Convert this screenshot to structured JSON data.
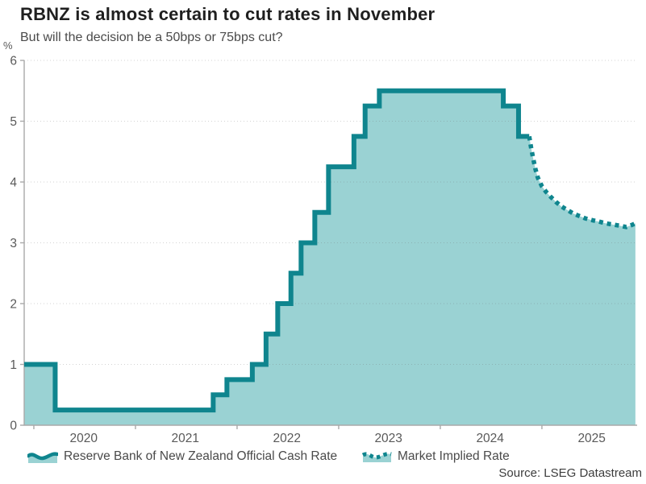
{
  "chart_data": {
    "type": "line",
    "title": "RBNZ is almost certain to cut rates in November",
    "subtitle": "But will the decision be a 50bps or 75bps cut?",
    "ylabel": "%",
    "xlabel": "",
    "ylim": [
      0,
      6
    ],
    "yticks": [
      0,
      1,
      2,
      3,
      4,
      5,
      6
    ],
    "xlim": [
      2019.905,
      2025.937
    ],
    "year_ticks": [
      2020,
      2021,
      2022,
      2023,
      2024,
      2025
    ],
    "grid": "horizontal-dotted",
    "legend_position": "bottom",
    "source": "Source: LSEG Datastream",
    "colors": {
      "line": "#0f858e",
      "fill": "#9ad2d3",
      "axis": "#a9a9a9",
      "grid": "rgba(110,110,110,0.30)",
      "tick_text": "#595959"
    },
    "series": [
      {
        "name": "Reserve Bank of New Zealand Official Cash Rate",
        "style": "step-area",
        "points": [
          [
            2019.905,
            1.0
          ],
          [
            2020.21,
            0.25
          ],
          [
            2021.765,
            0.5
          ],
          [
            2021.9,
            0.75
          ],
          [
            2022.15,
            1.0
          ],
          [
            2022.285,
            1.5
          ],
          [
            2022.4,
            2.0
          ],
          [
            2022.53,
            2.5
          ],
          [
            2022.63,
            3.0
          ],
          [
            2022.765,
            3.5
          ],
          [
            2022.9,
            4.25
          ],
          [
            2023.15,
            4.75
          ],
          [
            2023.26,
            5.25
          ],
          [
            2023.4,
            5.5
          ],
          [
            2024.62,
            5.25
          ],
          [
            2024.77,
            4.75
          ],
          [
            2024.875,
            4.75
          ]
        ]
      },
      {
        "name": "Market Implied Rate",
        "style": "dotted-line",
        "points": [
          [
            2024.875,
            4.75
          ],
          [
            2024.895,
            4.55
          ],
          [
            2024.915,
            4.38
          ],
          [
            2024.935,
            4.22
          ],
          [
            2024.96,
            4.07
          ],
          [
            2025.0,
            3.93
          ],
          [
            2025.04,
            3.84
          ],
          [
            2025.09,
            3.75
          ],
          [
            2025.14,
            3.67
          ],
          [
            2025.19,
            3.6
          ],
          [
            2025.25,
            3.54
          ],
          [
            2025.31,
            3.48
          ],
          [
            2025.37,
            3.44
          ],
          [
            2025.43,
            3.4
          ],
          [
            2025.5,
            3.37
          ],
          [
            2025.56,
            3.35
          ],
          [
            2025.63,
            3.32
          ],
          [
            2025.7,
            3.3
          ],
          [
            2025.77,
            3.28
          ],
          [
            2025.83,
            3.26
          ],
          [
            2025.88,
            3.29
          ],
          [
            2025.92,
            3.32
          ]
        ]
      }
    ]
  }
}
